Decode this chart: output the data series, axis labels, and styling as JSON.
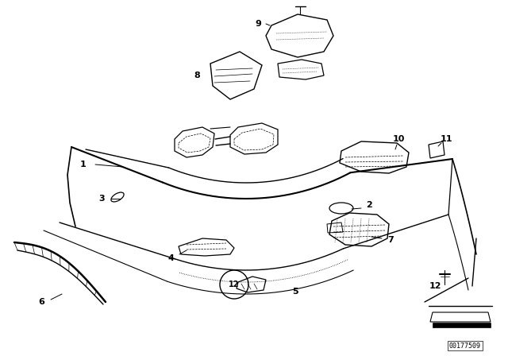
{
  "background_color": "#ffffff",
  "line_color": "#000000",
  "figure_width": 6.4,
  "figure_height": 4.48,
  "dpi": 100,
  "watermark": "00177509"
}
